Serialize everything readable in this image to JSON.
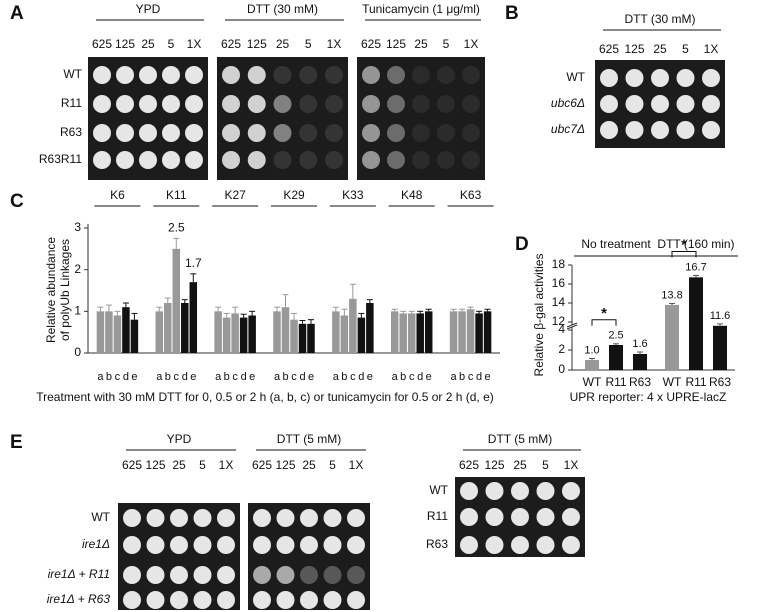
{
  "panel_a": {
    "label": "A",
    "conditions": [
      {
        "title": "YPD",
        "dilutions": [
          "625",
          "125",
          "25",
          "5",
          "1X"
        ]
      },
      {
        "title": "DTT (30 mM)",
        "dilutions": [
          "625",
          "125",
          "25",
          "5",
          "1X"
        ]
      },
      {
        "title": "Tunicamycin (1 μg/ml)",
        "dilutions": [
          "625",
          "125",
          "25",
          "5",
          "1X"
        ]
      }
    ],
    "strains": [
      "WT",
      "R11",
      "R63",
      "R63R11"
    ]
  },
  "panel_b": {
    "label": "B",
    "title": "DTT (30 mM)",
    "dilutions": [
      "625",
      "125",
      "25",
      "5",
      "1X"
    ],
    "strains": [
      "WT",
      "ubc6Δ",
      "ubc7Δ"
    ]
  },
  "panel_c": {
    "label": "C"
  },
  "panel_d": {
    "label": "D"
  },
  "chart_data": [
    {
      "type": "bar",
      "y_label": [
        "Relative abundance",
        "of polyUb Linkages"
      ],
      "x_label": "Treatment with 30 mM DTT for 0, 0.5 or 2 h (a, b, c) or tunicamycin for 0.5 or 2 h (d, e)",
      "categories": [
        "K6",
        "K11",
        "K27",
        "K29",
        "K33",
        "K48",
        "K63"
      ],
      "series": [
        {
          "name": "a",
          "color": "#999999",
          "values": [
            1.0,
            1.0,
            1.0,
            1.0,
            1.0,
            1.0,
            1.0
          ],
          "errors": [
            0.1,
            0.1,
            0.1,
            0.1,
            0.1,
            0.05,
            0.05
          ]
        },
        {
          "name": "b",
          "color": "#999999",
          "values": [
            1.0,
            1.2,
            0.85,
            1.1,
            0.9,
            0.95,
            1.0
          ],
          "errors": [
            0.15,
            0.12,
            0.1,
            0.3,
            0.15,
            0.05,
            0.05
          ]
        },
        {
          "name": "c",
          "color": "#999999",
          "values": [
            0.9,
            2.5,
            0.95,
            0.8,
            1.3,
            0.95,
            1.05
          ],
          "errors": [
            0.1,
            0.25,
            0.15,
            0.15,
            0.35,
            0.05,
            0.05
          ],
          "value_labels": [
            null,
            "2.5",
            null,
            null,
            null,
            null,
            null
          ]
        },
        {
          "name": "d",
          "color": "#111111",
          "values": [
            1.1,
            1.2,
            0.85,
            0.7,
            0.85,
            0.95,
            0.95
          ],
          "errors": [
            0.1,
            0.08,
            0.08,
            0.08,
            0.1,
            0.05,
            0.05
          ]
        },
        {
          "name": "e",
          "color": "#111111",
          "values": [
            0.8,
            1.7,
            0.9,
            0.7,
            1.2,
            1.0,
            1.0
          ],
          "errors": [
            0.15,
            0.2,
            0.1,
            0.1,
            0.08,
            0.05,
            0.05
          ],
          "value_labels": [
            null,
            "1.7",
            null,
            null,
            null,
            null,
            null
          ]
        }
      ],
      "ylim": [
        0,
        3
      ],
      "yticks": [
        0,
        1,
        2,
        3
      ]
    },
    {
      "type": "broken-bar",
      "y_label": "Relative β-gal activities",
      "x_label": "UPR reporter: 4 x UPRE-lacZ",
      "colors": [
        "#999999",
        "#111111",
        "#111111"
      ],
      "groups": [
        {
          "name": "No treatment",
          "categories": [
            "WT",
            "R11",
            "R63"
          ],
          "values": [
            1.0,
            2.5,
            1.6
          ],
          "errors": [
            0.15,
            0.12,
            0.2
          ],
          "value_labels": [
            "1.0",
            "2.5",
            "1.6"
          ]
        },
        {
          "name": "DTT (160 min)",
          "categories": [
            "WT",
            "R11",
            "R63"
          ],
          "values": [
            13.8,
            16.7,
            11.6
          ],
          "errors": [
            0.15,
            0.2,
            0.2
          ],
          "value_labels": [
            "13.8",
            "16.7",
            "11.6"
          ]
        }
      ],
      "significance": "*",
      "ylim": [
        0,
        18
      ],
      "axis_break": [
        4,
        12
      ],
      "yticks": [
        0,
        2,
        4,
        12,
        14,
        16,
        18
      ]
    }
  ],
  "panel_e": {
    "label": "E",
    "left": {
      "conditions": [
        {
          "title": "YPD",
          "dilutions": [
            "625",
            "125",
            "25",
            "5",
            "1X"
          ]
        },
        {
          "title": "DTT (5 mM)",
          "dilutions": [
            "625",
            "125",
            "25",
            "5",
            "1X"
          ]
        }
      ],
      "strains": [
        "WT",
        "ire1Δ",
        "ire1Δ + R11",
        "ire1Δ + R63"
      ]
    },
    "right": {
      "title": "DTT (5 mM)",
      "dilutions": [
        "625",
        "125",
        "25",
        "5",
        "1X"
      ],
      "strains": [
        "WT",
        "R11",
        "R63"
      ]
    }
  }
}
